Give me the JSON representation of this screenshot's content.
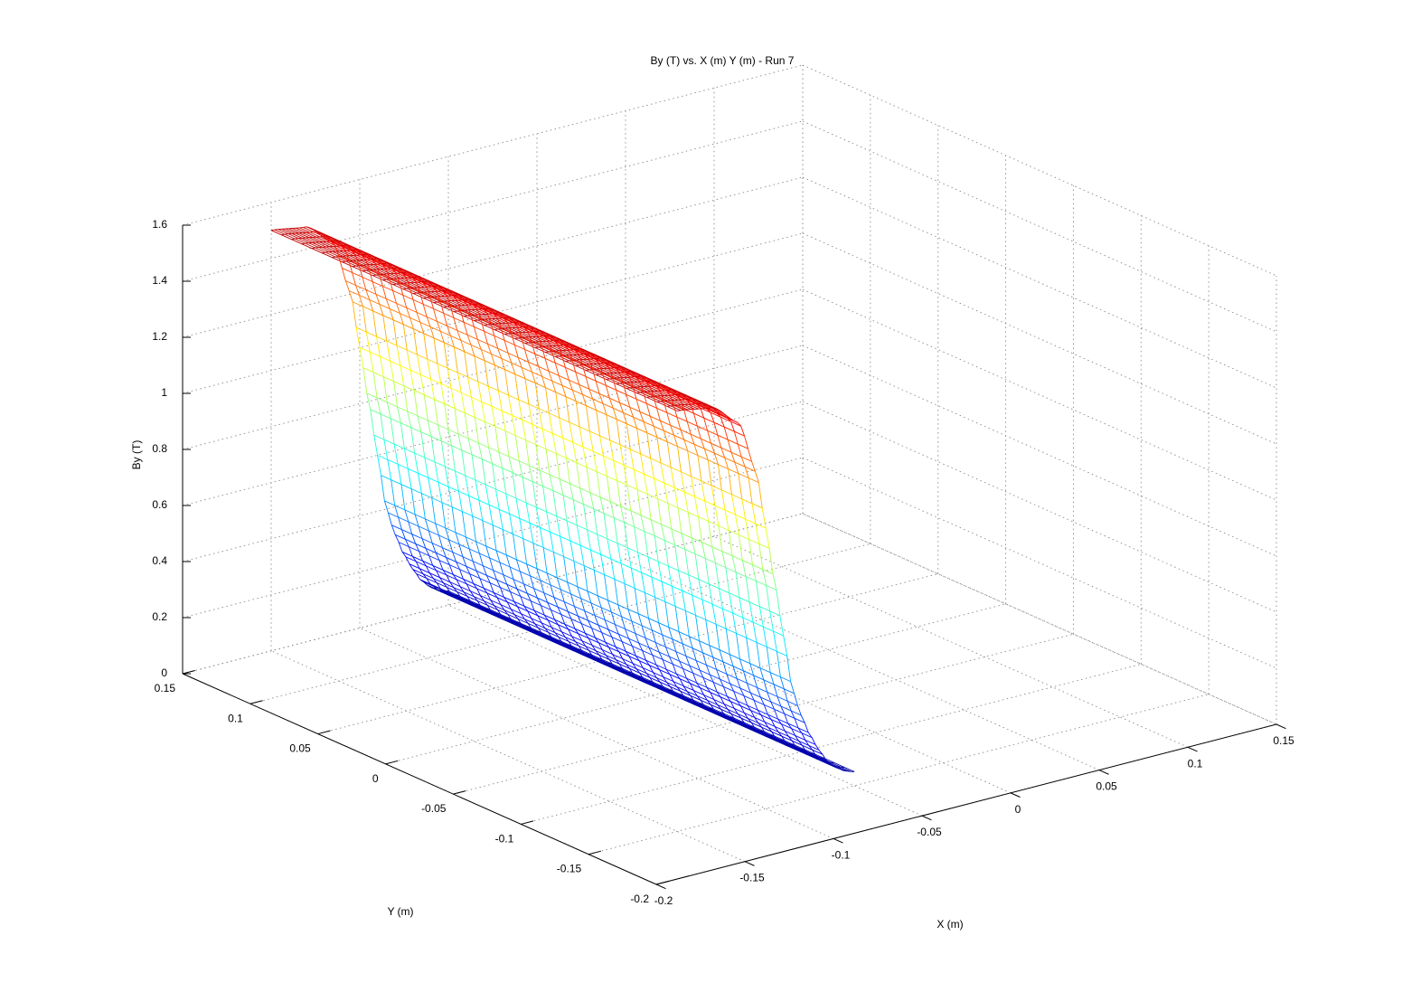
{
  "chart_data": {
    "type": "surface-mesh",
    "title": "By (T) vs. X (m) Y (m) - Run 7",
    "xlabel": "X (m)",
    "ylabel": "Y (m)",
    "zlabel": "By (T)",
    "xlim": [
      -0.2,
      0.15
    ],
    "ylim": [
      -0.2,
      0.15
    ],
    "zlim": [
      0,
      1.6
    ],
    "x_ticks": [
      "-0.2",
      "-0.15",
      "-0.1",
      "-0.05",
      "0",
      "0.05",
      "0.1",
      "0.15"
    ],
    "y_ticks": [
      "-0.2",
      "-0.15",
      "-0.1",
      "-0.05",
      "0",
      "0.05",
      "0.1",
      "0.15"
    ],
    "z_ticks": [
      "0",
      "0.2",
      "0.4",
      "0.6",
      "0.8",
      "1",
      "1.2",
      "1.4",
      "1.6"
    ],
    "grid": true,
    "colormap": "jet",
    "mesh_x": [
      -0.15,
      -0.05
    ],
    "mesh_y": [
      -0.15,
      0.15
    ],
    "mesh_columns": 50,
    "mesh_rows": 40,
    "surface_profile": [
      {
        "x": -0.15,
        "by": 1.5
      },
      {
        "x": -0.13,
        "by": 1.48
      },
      {
        "x": -0.115,
        "by": 1.4
      },
      {
        "x": -0.105,
        "by": 1.2
      },
      {
        "x": -0.1,
        "by": 1.0
      },
      {
        "x": -0.095,
        "by": 0.8
      },
      {
        "x": -0.09,
        "by": 0.6
      },
      {
        "x": -0.085,
        "by": 0.4
      },
      {
        "x": -0.08,
        "by": 0.3
      },
      {
        "x": -0.075,
        "by": 0.22
      },
      {
        "x": -0.07,
        "by": 0.16
      },
      {
        "x": -0.065,
        "by": 0.11
      },
      {
        "x": -0.06,
        "by": 0.08
      },
      {
        "x": -0.055,
        "by": 0.06
      },
      {
        "x": -0.05,
        "by": 0.05
      }
    ]
  }
}
